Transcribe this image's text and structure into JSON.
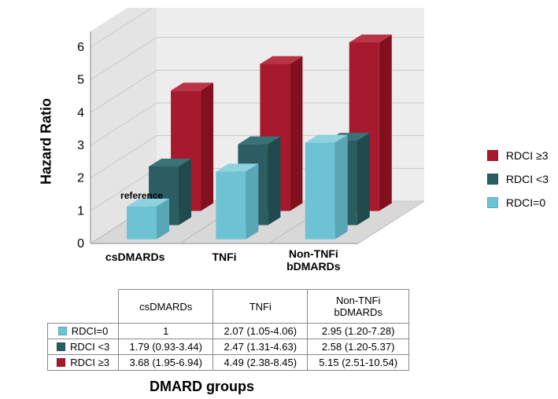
{
  "chart": {
    "type": "bar-3d",
    "title": null,
    "background_color": "#ffffff",
    "floor_color": "#d8d8d8",
    "back_wall_color": "#ededed",
    "side_wall_color": "#e4e4e4",
    "grid_color": "#c9c9c9",
    "y_axis": {
      "label": "Hazard Ratio",
      "min": 0,
      "max": 6,
      "tick_step": 1,
      "tick_fontsize": 16,
      "label_fontsize": 18,
      "label_fontweight": "bold"
    },
    "x_axis": {
      "label": "DMARD groups",
      "categories": [
        "csDMARDs",
        "TNFi",
        "Non-TNFi bDMARDs"
      ],
      "label_fontsize": 18,
      "label_fontweight": "bold",
      "category_fontsize": 14
    },
    "reference_label": "reference",
    "series": [
      {
        "id": "rdci_0",
        "name": "RDCI=0",
        "color": "#6dc3d4",
        "side_color": "#59a6b6",
        "top_color": "#8fd1de",
        "values": [
          1.0,
          2.07,
          2.95
        ],
        "ci_text": [
          "1",
          "2.07 (1.05-4.06)",
          "2.95 (1.20-7.28)"
        ]
      },
      {
        "id": "rdci_lt3",
        "name": "RDCI <3",
        "color": "#2b5e62",
        "side_color": "#204a4d",
        "top_color": "#3a7377",
        "values": [
          1.79,
          2.47,
          2.58
        ],
        "ci_text": [
          "1.79 (0.93-3.44)",
          "2.47 (1.31-4.63)",
          "2.58 (1.20-5.37)"
        ]
      },
      {
        "id": "rdci_ge3",
        "name": "RDCI ≥3",
        "color": "#a71a2e",
        "side_color": "#83101f",
        "top_color": "#b83446",
        "values": [
          3.68,
          4.49,
          5.15
        ],
        "ci_text": [
          "3.68 (1.95-6.94)",
          "4.49 (2.38-8.45)",
          "5.15 (2.51-10.54)"
        ]
      }
    ]
  },
  "legend": {
    "position": "right",
    "item_fontsize": 14,
    "order": [
      "rdci_ge3",
      "rdci_lt3",
      "rdci_0"
    ]
  },
  "table": {
    "column_headers": [
      "csDMARDs",
      "TNFi",
      "Non-TNFi bDMARDs"
    ]
  }
}
